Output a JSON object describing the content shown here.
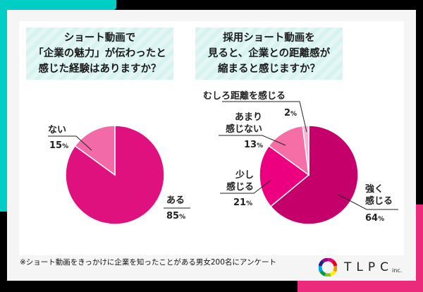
{
  "chart_data": [
    {
      "type": "pie",
      "title": "ショート動画で「企業の魅力」が伝わったと感じた経験はありますか？",
      "title_lines": [
        "ショート動画で",
        "「企業の魅力」が伝わったと",
        "感じた経験はありますか？"
      ],
      "categories": [
        "ある",
        "ない"
      ],
      "values": [
        85,
        15
      ],
      "colors": [
        "#df117f",
        "#f26ba8"
      ],
      "labels": [
        {
          "name": "ある",
          "pct": "85"
        },
        {
          "name": "ない",
          "pct": "15"
        }
      ]
    },
    {
      "type": "pie",
      "title": "採用ショート動画を見ると、企業との距離感が縮まると感じますか？",
      "title_lines": [
        "採用ショート動画を",
        "見ると、企業との距離感が",
        "縮まると感じますか？"
      ],
      "categories": [
        "強く感じる",
        "少し感じる",
        "あまり感じない",
        "むしろ距離を感じる"
      ],
      "values": [
        64,
        21,
        13,
        2
      ],
      "colors": [
        "#c6006a",
        "#ec0080",
        "#f56ea5",
        "#f9b4cf"
      ],
      "labels": [
        {
          "l1": "強く",
          "l2": "感じる",
          "pct": "64"
        },
        {
          "l1": "少し",
          "l2": "感じる",
          "pct": "21"
        },
        {
          "l1": "あまり",
          "l2": "感じない",
          "pct": "13"
        },
        {
          "l1": "むしろ距離を感じる",
          "pct": "2"
        }
      ]
    }
  ],
  "percent_sign": "%",
  "footnote": "※ショート動画をきっかけに企業を知ったことがある男女200名にアンケート",
  "logo": {
    "name": "TLPC",
    "suffix": "inc."
  }
}
